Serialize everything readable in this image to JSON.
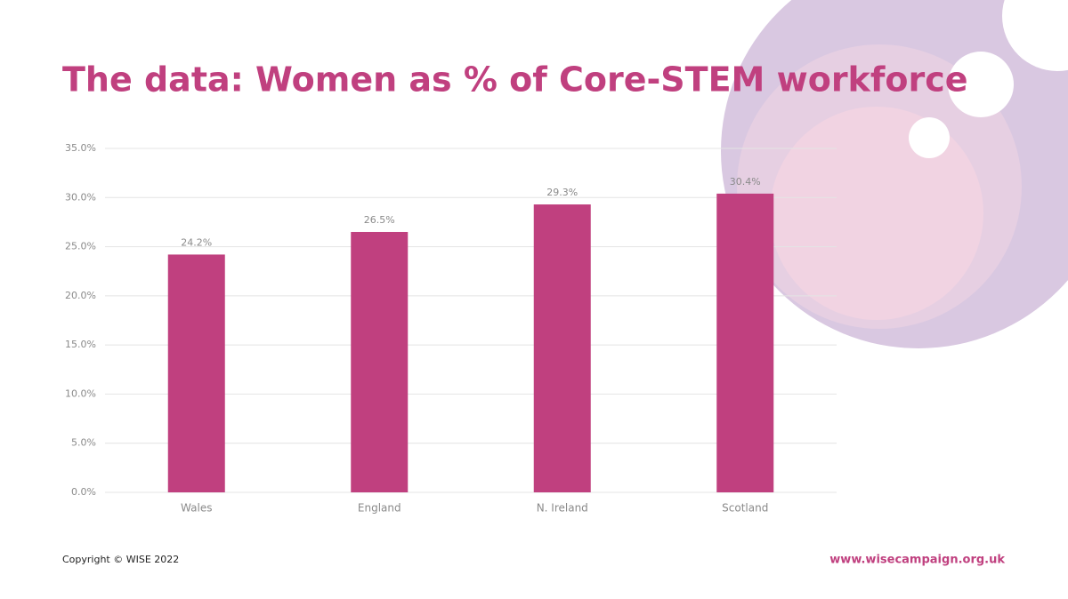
{
  "chart_data": {
    "type": "bar",
    "title": "The data: Women as % of Core-STEM workforce",
    "categories": [
      "Wales",
      "England",
      "N. Ireland",
      "Scotland"
    ],
    "values": [
      24.2,
      26.5,
      29.3,
      30.4
    ],
    "value_labels": [
      "24.2%",
      "26.5%",
      "29.3%",
      "30.4%"
    ],
    "color": "#c0407f",
    "ylim": [
      0,
      35
    ],
    "yticks": [
      {
        "value": 0,
        "label": "0.0%"
      },
      {
        "value": 5,
        "label": "5.0%"
      },
      {
        "value": 10,
        "label": "10.0%"
      },
      {
        "value": 15,
        "label": "15.0%"
      },
      {
        "value": 20,
        "label": "20.0%"
      },
      {
        "value": 25,
        "label": "25.0%"
      },
      {
        "value": 30,
        "label": "30.0%"
      },
      {
        "value": 35,
        "label": "35.0%"
      }
    ],
    "grid": true
  },
  "footer": {
    "copyright": "Copyright © WISE 2022",
    "url": "www.wisecampaign.org.uk"
  }
}
